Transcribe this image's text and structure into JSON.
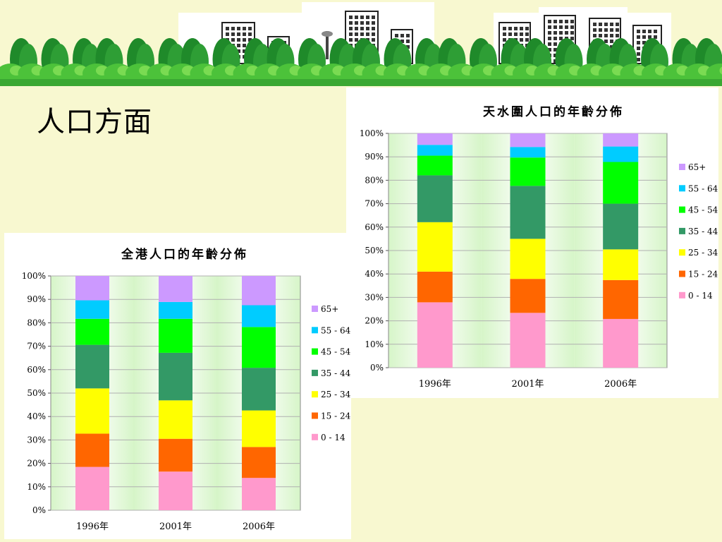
{
  "slide": {
    "title": "人口方面"
  },
  "colors": {
    "background": "#f8f8d0",
    "plot_bg_light": "#ffffff",
    "plot_bg_green": "#d6f5c8",
    "gridline": "#b0b0b0",
    "tree_dark": "#1f8a2a",
    "tree_light": "#4cc23a"
  },
  "chart_data": [
    {
      "id": "tsw",
      "type": "bar",
      "stacked": true,
      "title": "天水圍人口的年齡分佈",
      "categories": [
        "1996年",
        "2001年",
        "2006年"
      ],
      "ylim": [
        0,
        100
      ],
      "yticks": [
        "0%",
        "10%",
        "20%",
        "30%",
        "40%",
        "50%",
        "60%",
        "70%",
        "80%",
        "90%",
        "100%"
      ],
      "grid": true,
      "legend_position": "right",
      "series": [
        {
          "name": "0 - 14",
          "color": "#ff99cc",
          "values": [
            27.9,
            23.4,
            20.8
          ]
        },
        {
          "name": "15 - 24",
          "color": "#ff6600",
          "values": [
            13.1,
            14.5,
            16.6
          ]
        },
        {
          "name": "25 - 34",
          "color": "#ffff00",
          "values": [
            21.1,
            17.1,
            13.1
          ]
        },
        {
          "name": "35 - 44",
          "color": "#339966",
          "values": [
            20.0,
            22.6,
            19.5
          ]
        },
        {
          "name": "45 - 54",
          "color": "#00ff00",
          "values": [
            8.4,
            12.1,
            17.8
          ]
        },
        {
          "name": "55 - 64",
          "color": "#00ccff",
          "values": [
            4.6,
            4.5,
            6.6
          ]
        },
        {
          "name": "65+",
          "color": "#cc99ff",
          "values": [
            4.9,
            5.8,
            5.6
          ]
        }
      ]
    },
    {
      "id": "hk",
      "type": "bar",
      "stacked": true,
      "title": "全港人口的年齡分佈",
      "categories": [
        "1996年",
        "2001年",
        "2006年"
      ],
      "ylim": [
        0,
        100
      ],
      "yticks": [
        "0%",
        "10%",
        "20%",
        "30%",
        "40%",
        "50%",
        "60%",
        "70%",
        "80%",
        "90%",
        "100%"
      ],
      "grid": true,
      "legend_position": "right",
      "series": [
        {
          "name": "0 - 14",
          "color": "#ff99cc",
          "values": [
            18.5,
            16.5,
            13.8
          ]
        },
        {
          "name": "15 - 24",
          "color": "#ff6600",
          "values": [
            14.2,
            14.0,
            13.2
          ]
        },
        {
          "name": "25 - 34",
          "color": "#ffff00",
          "values": [
            19.3,
            16.4,
            15.6
          ]
        },
        {
          "name": "35 - 44",
          "color": "#339966",
          "values": [
            18.6,
            20.3,
            18.2
          ]
        },
        {
          "name": "45 - 54",
          "color": "#00ff00",
          "values": [
            11.1,
            14.5,
            17.4
          ]
        },
        {
          "name": "55 - 64",
          "color": "#00ccff",
          "values": [
            7.9,
            7.2,
            9.3
          ]
        },
        {
          "name": "65+",
          "color": "#cc99ff",
          "values": [
            10.4,
            11.1,
            12.5
          ]
        }
      ]
    }
  ]
}
